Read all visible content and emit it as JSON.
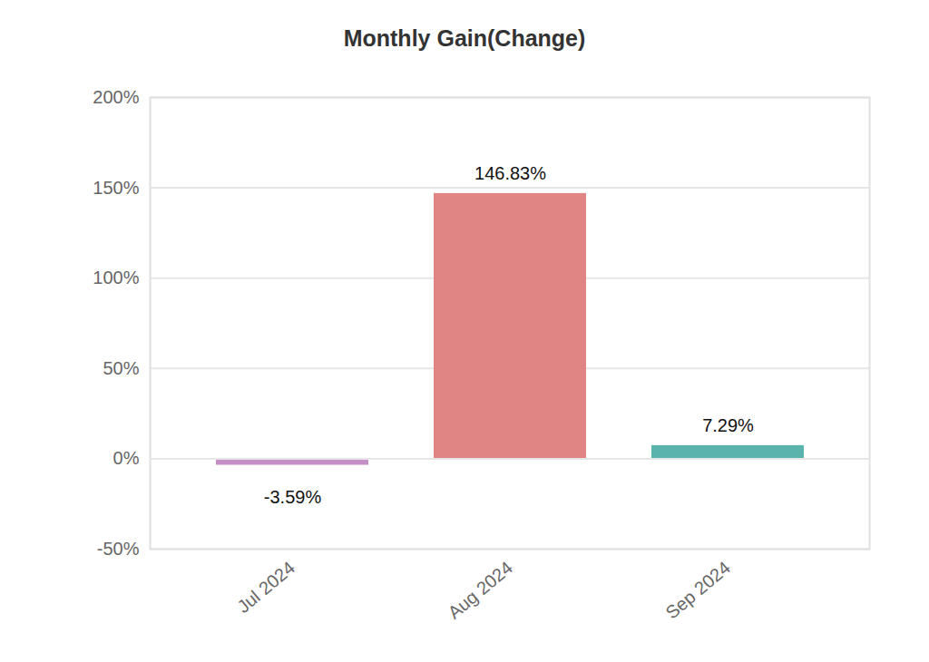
{
  "chart_data": {
    "type": "bar",
    "title": "Monthly Gain(Change)",
    "categories": [
      "Jul 2024",
      "Aug 2024",
      "Sep 2024"
    ],
    "values": [
      -3.59,
      146.83,
      7.29
    ],
    "value_labels": [
      "-3.59%",
      "146.83%",
      "7.29%"
    ],
    "colors": [
      "#c78fc7",
      "#e08583",
      "#5bb3ae"
    ],
    "ylim": [
      -50,
      200
    ],
    "yticks": [
      {
        "value": -50,
        "label": "-50%"
      },
      {
        "value": 0,
        "label": "0%"
      },
      {
        "value": 50,
        "label": "50%"
      },
      {
        "value": 100,
        "label": "100%"
      },
      {
        "value": 150,
        "label": "150%"
      },
      {
        "value": 200,
        "label": "200%"
      }
    ],
    "grid": true,
    "data_labels": true
  }
}
